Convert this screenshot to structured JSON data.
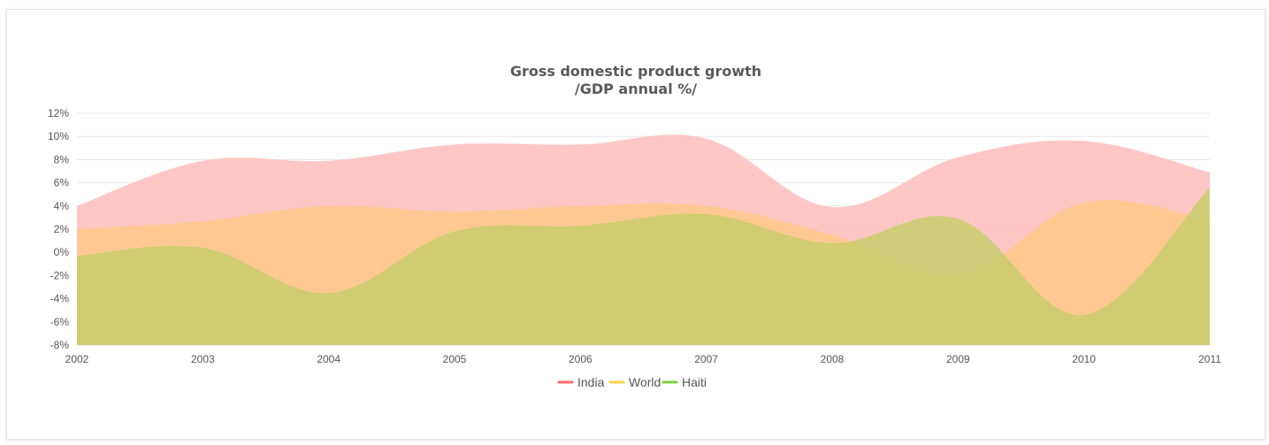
{
  "chart_data": {
    "type": "area",
    "title": "Gross domestic product growth",
    "subtitle": "/GDP annual %/",
    "categories": [
      "2002",
      "2003",
      "2004",
      "2005",
      "2006",
      "2007",
      "2008",
      "2009",
      "2010",
      "2011"
    ],
    "ylim": [
      -8,
      12
    ],
    "yticks": [
      12,
      10,
      8,
      6,
      4,
      2,
      0,
      -2,
      -4,
      -6,
      -8
    ],
    "ytick_labels": [
      "12%",
      "10%",
      "8%",
      "6%",
      "4%",
      "2%",
      "0%",
      "-2%",
      "-4%",
      "-6%",
      "-8%"
    ],
    "grid": true,
    "legend_position": "bottom-center",
    "series": [
      {
        "name": "India",
        "color": "#ff6b6b",
        "fill": "#ffbcbc",
        "values": [
          4.0,
          7.9,
          7.9,
          9.3,
          9.3,
          9.8,
          3.9,
          8.2,
          9.6,
          6.9
        ]
      },
      {
        "name": "World",
        "color": "#ffd24d",
        "fill": "#ffc88a",
        "values": [
          2.0,
          2.7,
          4.0,
          3.5,
          4.0,
          4.0,
          1.5,
          -2.0,
          4.3,
          2.8
        ]
      },
      {
        "name": "Haiti",
        "color": "#7ecf34",
        "fill": "#c9cc6c",
        "values": [
          -0.3,
          0.4,
          -3.5,
          1.8,
          2.3,
          3.3,
          0.8,
          2.9,
          -5.4,
          5.6
        ]
      }
    ]
  }
}
